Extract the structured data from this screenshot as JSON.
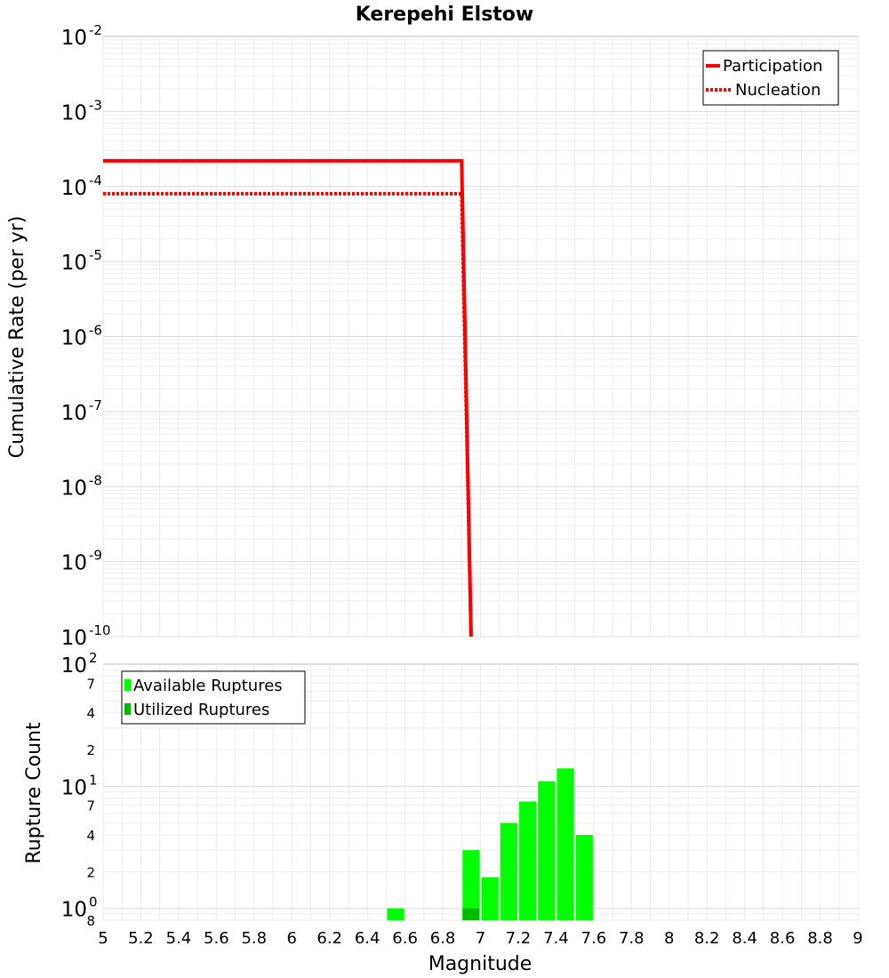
{
  "chart_data": {
    "type": "line",
    "title": "Kerepehi Elstow",
    "xlabel": "Magnitude",
    "xlim": [
      5,
      9
    ],
    "x_ticks": [
      "5",
      "5.2",
      "5.4",
      "5.6",
      "5.8",
      "6",
      "6.2",
      "6.4",
      "6.6",
      "6.8",
      "7",
      "7.2",
      "7.4",
      "7.6",
      "7.8",
      "8",
      "8.2",
      "8.4",
      "8.6",
      "8.8",
      "9"
    ],
    "x_tick_values": [
      5,
      5.2,
      5.4,
      5.6,
      5.8,
      6,
      6.2,
      6.4,
      6.6,
      6.8,
      7,
      7.2,
      7.4,
      7.6,
      7.8,
      8,
      8.2,
      8.4,
      8.6,
      8.8,
      9
    ],
    "rate_panel": {
      "ylabel": "Cumulative Rate (per yr)",
      "yscale": "log",
      "ylim": [
        1e-10,
        0.01
      ],
      "y_ticks": [
        {
          "value": 1e-10,
          "base": "10",
          "exp": "-10"
        },
        {
          "value": 1e-09,
          "base": "10",
          "exp": "-9"
        },
        {
          "value": 1e-08,
          "base": "10",
          "exp": "-8"
        },
        {
          "value": 1e-07,
          "base": "10",
          "exp": "-7"
        },
        {
          "value": 1e-06,
          "base": "10",
          "exp": "-6"
        },
        {
          "value": 1e-05,
          "base": "10",
          "exp": "-5"
        },
        {
          "value": 0.0001,
          "base": "10",
          "exp": "-4"
        },
        {
          "value": 0.001,
          "base": "10",
          "exp": "-3"
        },
        {
          "value": 0.01,
          "base": "10",
          "exp": "-2"
        }
      ],
      "legend_position": "top-right",
      "series": [
        {
          "name": "Participation",
          "color": "#ff0000",
          "style": "solid",
          "x": [
            5,
            6.9,
            6.95
          ],
          "y": [
            0.00022,
            0.00022,
            1e-10
          ]
        },
        {
          "name": "Nucleation",
          "color": "#ff0000",
          "style": "dotted",
          "x": [
            5,
            6.9,
            6.95
          ],
          "y": [
            8e-05,
            8e-05,
            1e-10
          ]
        }
      ]
    },
    "count_panel": {
      "type": "bar",
      "ylabel": "Rupture Count",
      "yscale": "log",
      "ylim": [
        0.8,
        100
      ],
      "major_ticks": [
        {
          "value": 1,
          "base": "10",
          "exp": "0"
        },
        {
          "value": 10,
          "base": "10",
          "exp": "1"
        },
        {
          "value": 100,
          "base": "10",
          "exp": "2"
        }
      ],
      "minor_ticks": [
        {
          "value": 0.8,
          "label": "8"
        },
        {
          "value": 2,
          "label": "2"
        },
        {
          "value": 4,
          "label": "4"
        },
        {
          "value": 7,
          "label": "7"
        },
        {
          "value": 20,
          "label": "2"
        },
        {
          "value": 40,
          "label": "4"
        },
        {
          "value": 70,
          "label": "7"
        }
      ],
      "legend_position": "top-left",
      "bin_width": 0.1,
      "series": [
        {
          "name": "Available Ruptures",
          "color": "#00ff00",
          "x": [
            6.55,
            6.95,
            7.05,
            7.15,
            7.25,
            7.35,
            7.45,
            7.55
          ],
          "values": [
            1,
            3,
            1.8,
            5,
            7.5,
            11,
            14,
            4
          ]
        },
        {
          "name": "Utilized Ruptures",
          "color": "#00bb00",
          "x": [
            6.95
          ],
          "values": [
            1
          ]
        }
      ]
    }
  }
}
